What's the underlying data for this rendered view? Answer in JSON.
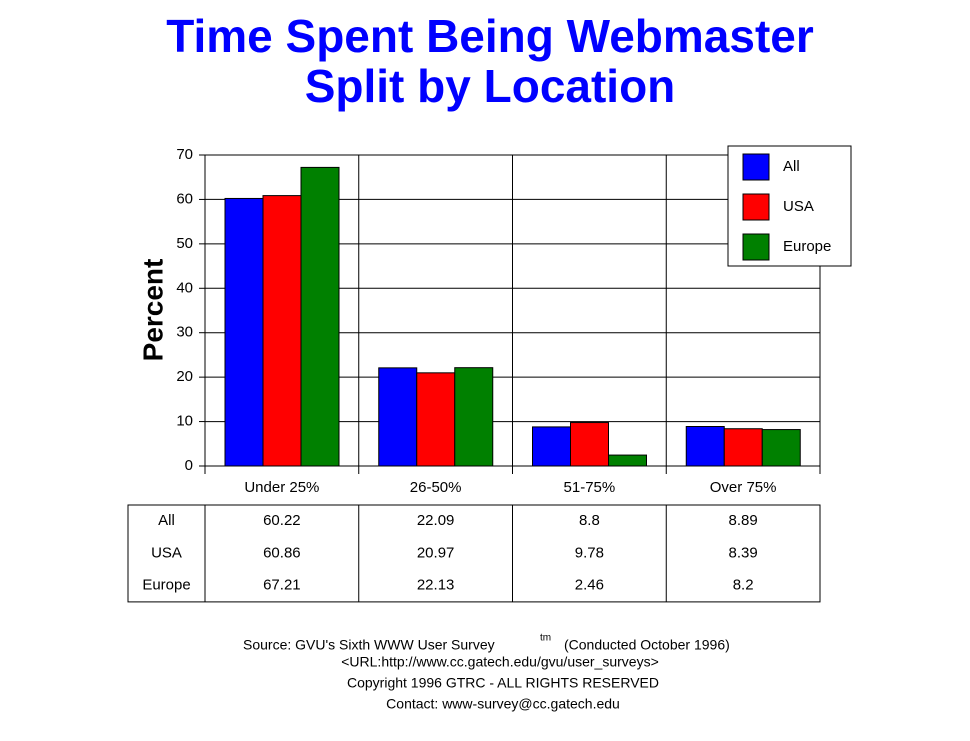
{
  "chart_data": {
    "type": "bar",
    "title": [
      "Time Spent Being Webmaster",
      "Split by Location"
    ],
    "y_label": "Percent",
    "categories": [
      "Under 25%",
      "26-50%",
      "51-75%",
      "Over 75%"
    ],
    "series": [
      {
        "name": "All",
        "color": "#0000ff",
        "values": [
          60.22,
          22.09,
          8.8,
          8.89
        ]
      },
      {
        "name": "USA",
        "color": "#ff0000",
        "values": [
          60.86,
          20.97,
          9.78,
          8.39
        ]
      },
      {
        "name": "Europe",
        "color": "#008000",
        "values": [
          67.21,
          22.13,
          2.46,
          8.2
        ]
      }
    ],
    "ylim": [
      0,
      70
    ],
    "yticks": [
      0,
      10,
      20,
      30,
      40,
      50,
      60,
      70
    ],
    "grid": true,
    "legend": "top-right",
    "footer": {
      "source": "Source: GVU's Sixth WWW User Survey",
      "superscript": "tm",
      "conducted": "(Conducted October 1996)",
      "url": "<URL:http://www.cc.gatech.edu/gvu/user_surveys>",
      "copyright": "Copyright 1996 GTRC - ALL RIGHTS RESERVED",
      "contact": "Contact: www-survey@cc.gatech.edu"
    }
  }
}
